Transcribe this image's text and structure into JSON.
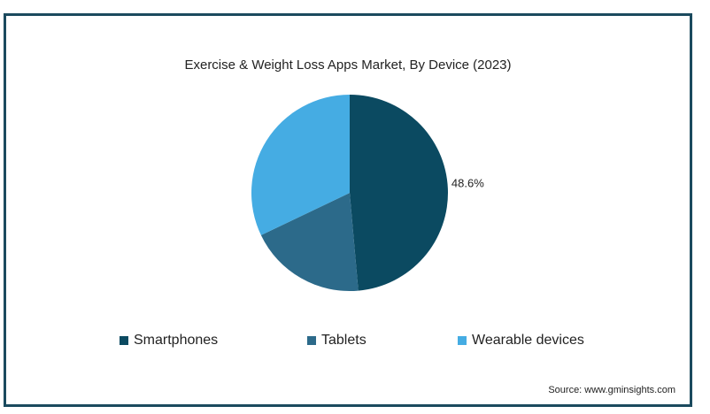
{
  "chart_data": {
    "type": "pie",
    "title": "Exercise & Weight Loss Apps Market, By Device (2023)",
    "categories": [
      "Smartphones",
      "Tablets",
      "Wearable devices"
    ],
    "values": [
      48.6,
      19.3,
      32.1
    ],
    "data_labels": [
      "48.6%",
      "",
      ""
    ],
    "colors": [
      "#0b4a61",
      "#2c6a8a",
      "#45ace3"
    ],
    "legend_position": "bottom"
  },
  "source": "Source: www.gminsights.com"
}
